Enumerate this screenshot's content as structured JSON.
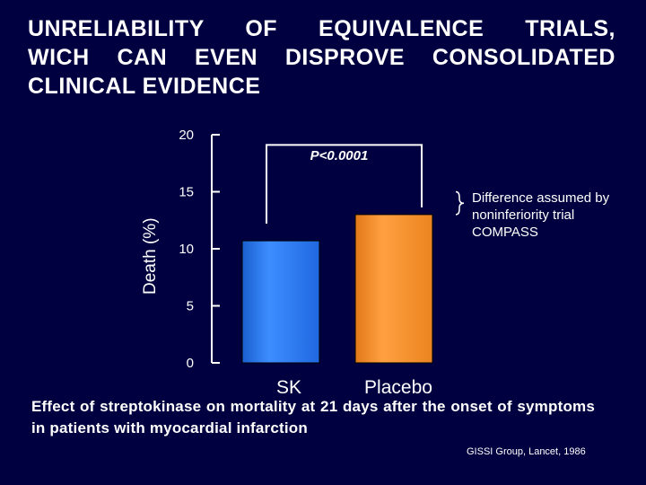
{
  "slide": {
    "title_lines": [
      "UNRELIABILITY OF EQUIVALENCE TRIALS,",
      "WICH CAN EVEN DISPROVE CONSOLIDATED",
      "CLINICAL EVIDENCE"
    ],
    "annotation": "Difference assumed by noninferiority trial COMPASS",
    "caption": "Effect of streptokinase on mortality at 21 days after the onset of symptoms in patients with myocardial infarction",
    "source": "GISSI Group, Lancet, 1986"
  },
  "colors": {
    "background": "#000040",
    "bar_sk": "#2a7fff",
    "bar_placebo": "#ff9326",
    "axis": "#ffffff"
  },
  "chart_data": {
    "type": "bar",
    "title": "",
    "xlabel": "",
    "ylabel": "Death (%)",
    "categories": [
      "SK",
      "Placebo"
    ],
    "values": [
      10.7,
      13.0
    ],
    "ylim": [
      0,
      20
    ],
    "yticks": [
      "0",
      "5",
      "10",
      "15",
      "20"
    ],
    "annotations": [
      {
        "text": "P<0.0001",
        "type": "significance-bracket",
        "between": [
          "SK",
          "Placebo"
        ]
      }
    ]
  }
}
